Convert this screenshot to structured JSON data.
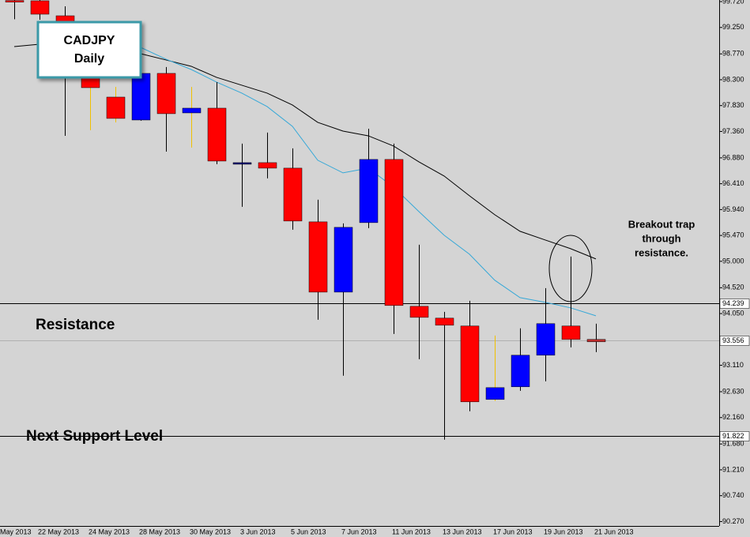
{
  "chart_data": {
    "type": "candlestick",
    "categories": [
      "May 2013",
      null,
      "22 May 2013",
      null,
      "24 May 2013",
      null,
      "28 May 2013",
      null,
      "30 May 2013",
      null,
      "3 Jun 2013",
      null,
      "5 Jun 2013",
      null,
      "7 Jun 2013",
      null,
      "11 Jun 2013",
      null,
      "13 Jun 2013",
      null,
      "17 Jun 2013",
      null,
      "19 Jun 2013",
      null,
      "21 Jun 2013"
    ],
    "open": [
      null,
      99.74,
      99.735,
      99.462,
      98.386,
      97.984,
      97.568,
      98.415,
      97.697,
      97.783,
      96.765,
      96.793,
      96.693,
      95.717,
      94.44,
      95.703,
      96.851,
      94.182,
      93.967,
      93.824,
      92.489,
      92.719,
      93.293,
      93.824,
      93.58
    ],
    "high": [
      null,
      99.749,
      99.749,
      99.634,
      98.716,
      98.171,
      98.673,
      98.53,
      98.171,
      98.257,
      97.138,
      97.339,
      97.052,
      96.119,
      95.689,
      97.41,
      97.138,
      95.301,
      94.082,
      94.283,
      93.651,
      93.781,
      94.512,
      95.086,
      93.867
    ],
    "low": [
      null,
      99.4,
      99.39,
      97.281,
      97.382,
      97.525,
      97.554,
      96.994,
      97.066,
      96.765,
      95.99,
      96.507,
      95.574,
      93.938,
      92.92,
      95.603,
      93.68,
      93.221,
      91.758,
      92.274,
      92.461,
      92.647,
      92.819,
      93.436,
      93.35
    ],
    "close": [
      null,
      99.72,
      99.491,
      98.372,
      98.156,
      97.597,
      98.415,
      97.683,
      97.783,
      96.822,
      96.793,
      96.693,
      95.732,
      94.44,
      95.617,
      96.851,
      94.197,
      93.981,
      93.838,
      92.446,
      92.704,
      93.293,
      93.867,
      93.58,
      93.537
    ],
    "colors": [
      null,
      "#ff0000",
      "#ff0000",
      "#ff0000",
      "#ff0000",
      "#ff0000",
      "#0000ff",
      "#ff0000",
      "#0000ff",
      "#ff0000",
      "#000080",
      "#ff0000",
      "#ff0000",
      "#ff0000",
      "#0000ff",
      "#0000ff",
      "#ff0000",
      "#ff0000",
      "#ff0000",
      "#ff0000",
      "#0000ff",
      "#0000ff",
      "#0000ff",
      "#ff0000",
      "#c03030"
    ],
    "wick_colors": [
      null,
      "#000000",
      "#000000",
      "#000000",
      "#f0c000",
      "#f0c000",
      "#000000",
      "#000000",
      "#f0c000",
      "#000000",
      "#000000",
      "#000000",
      "#000000",
      "#000000",
      "#000000",
      "#000000",
      "#000000",
      "#000000",
      "#000000",
      "#000000",
      "#f0c000",
      "#000000",
      "#000000",
      "#000000",
      "#000000"
    ],
    "overlays": [
      {
        "color": "#000000",
        "values": [
          null,
          98.903,
          98.946,
          98.96,
          98.917,
          98.859,
          98.773,
          98.659,
          98.544,
          98.343,
          98.2,
          98.056,
          97.841,
          97.525,
          97.367,
          97.281,
          97.095,
          96.808,
          96.55,
          96.191,
          95.847,
          95.545,
          95.387,
          95.23,
          95.043
        ]
      },
      {
        "color": "#35a8d8",
        "values": [
          null,
          null,
          null,
          null,
          null,
          99.118,
          98.888,
          98.673,
          98.486,
          98.257,
          98.056,
          97.812,
          97.453,
          96.837,
          96.607,
          96.693,
          96.349,
          95.904,
          95.474,
          95.129,
          94.656,
          94.34,
          94.254,
          94.154,
          94.01
        ]
      }
    ],
    "levels": [
      {
        "value": 94.239,
        "color": "#000000"
      },
      {
        "value": 93.556,
        "color": "#b0b0b0"
      },
      {
        "value": 91.822,
        "color": "#000000"
      }
    ],
    "ylim": [
      90.19,
      99.749
    ],
    "yticks": [
      {
        "value": 99.72,
        "label": "99.720"
      },
      {
        "value": 99.25,
        "label": "99.250"
      },
      {
        "value": 98.77,
        "label": "98.770"
      },
      {
        "value": 98.3,
        "label": "98.300"
      },
      {
        "value": 97.83,
        "label": "97.830"
      },
      {
        "value": 97.36,
        "label": "97.360"
      },
      {
        "value": 96.88,
        "label": "96.880"
      },
      {
        "value": 96.41,
        "label": "96.410"
      },
      {
        "value": 95.94,
        "label": "95.940"
      },
      {
        "value": 95.47,
        "label": "95.470"
      },
      {
        "value": 95,
        "label": "95.000"
      },
      {
        "value": 94.52,
        "label": "94.520"
      },
      {
        "value": 94.05,
        "label": "94.050"
      },
      {
        "value": 93.11,
        "label": "93.110"
      },
      {
        "value": 92.63,
        "label": "92.630"
      },
      {
        "value": 92.16,
        "label": "92.160"
      },
      {
        "value": 91.68,
        "label": "91.680"
      },
      {
        "value": 91.21,
        "label": "91.210"
      },
      {
        "value": 90.74,
        "label": "90.740"
      },
      {
        "value": 90.27,
        "label": "90.270"
      }
    ],
    "annotations": {
      "box": [
        "CADJPY",
        "Daily"
      ],
      "note": [
        "Breakout trap",
        "through",
        "resistance."
      ],
      "resistance": "Resistance",
      "support": "Next Support Level"
    }
  }
}
